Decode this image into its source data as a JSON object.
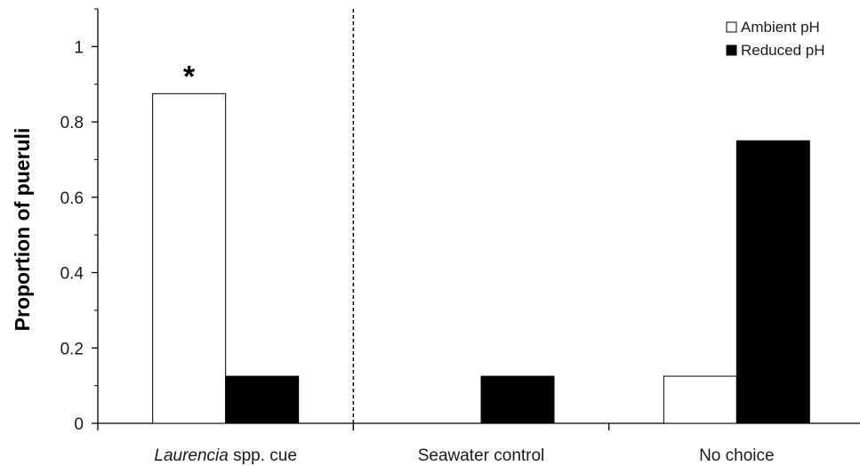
{
  "chart_data": {
    "type": "bar",
    "categories": [
      "Laurencia spp. cue",
      "Seawater control",
      "No choice"
    ],
    "category_display": [
      {
        "italic": "Laurencia",
        "rest": " spp. cue"
      },
      {
        "italic": "",
        "rest": "Seawater control"
      },
      {
        "italic": "",
        "rest": "No choice"
      }
    ],
    "series": [
      {
        "name": "Ambient pH",
        "color": "#ffffff",
        "values": [
          0.875,
          0,
          0.125
        ]
      },
      {
        "name": "Reduced pH",
        "color": "#000000",
        "values": [
          0.125,
          0.125,
          0.75
        ]
      }
    ],
    "ylabel": "Proportion of pueruli",
    "xlabel": "",
    "ylim": [
      0,
      1.1
    ],
    "yticks": [
      0,
      0.2,
      0.4,
      0.6,
      0.8,
      1
    ],
    "ytick_labels": [
      "0",
      "0.2",
      "0.4",
      "0.6",
      "0.8",
      "1"
    ],
    "grid": false,
    "legend_position": "top-right",
    "divider_after_category": 0,
    "annotations": [
      {
        "category_index": 0,
        "text": "*"
      }
    ]
  }
}
